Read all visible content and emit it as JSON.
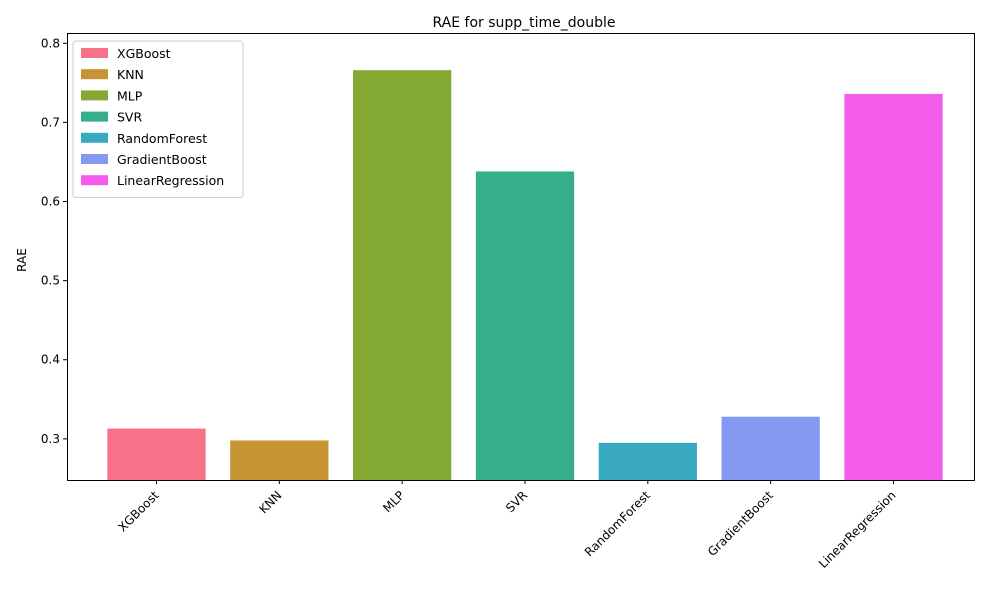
{
  "chart_data": {
    "type": "bar",
    "title": "RAE for supp_time_double",
    "xlabel": "",
    "ylabel": "RAE",
    "categories": [
      "XGBoost",
      "KNN",
      "MLP",
      "SVR",
      "RandomForest",
      "GradientBoost",
      "LinearRegression"
    ],
    "values": [
      0.313,
      0.298,
      0.766,
      0.638,
      0.295,
      0.328,
      0.736
    ],
    "colors": [
      "#f77189",
      "#c69432",
      "#83a933",
      "#36ae8c",
      "#38a9c0",
      "#8599f3",
      "#f45dec"
    ],
    "ylim": [
      0.248,
      0.813
    ],
    "yticks": [
      0.3,
      0.4,
      0.5,
      0.6,
      0.7,
      0.8
    ],
    "ytick_labels": [
      "0.3",
      "0.4",
      "0.5",
      "0.6",
      "0.7",
      "0.8"
    ],
    "grid": false,
    "legend": {
      "position": "top-left",
      "entries": [
        "XGBoost",
        "KNN",
        "MLP",
        "SVR",
        "RandomForest",
        "GradientBoost",
        "LinearRegression"
      ]
    }
  }
}
